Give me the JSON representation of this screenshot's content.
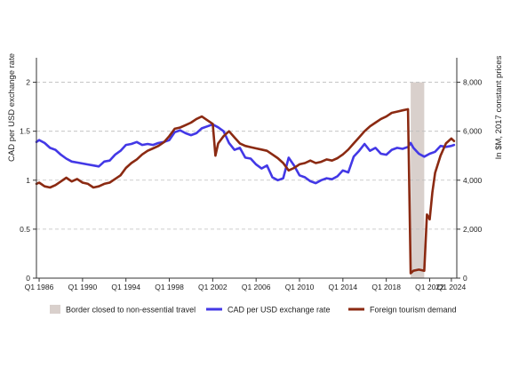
{
  "chart_data": {
    "type": "line",
    "title": "",
    "x_axis": {
      "tick_labels": [
        "Q1 1986",
        "Q1 1990",
        "Q1 1994",
        "Q1 1998",
        "Q1 2002",
        "Q1 2006",
        "Q1 2010",
        "Q1 2014",
        "Q1 2018",
        "Q1 2022",
        "Q1 2024"
      ],
      "range": [
        "Q3 1985",
        "Q2 2024"
      ]
    },
    "y_left": {
      "label": "CAD per USD exchange rate",
      "range": [
        0,
        2.25
      ],
      "ticks": [
        "0",
        "0.5",
        "1",
        "1.5",
        "2"
      ]
    },
    "y_right": {
      "label": "In $M, 2017 constant prices",
      "range": [
        0,
        9000
      ],
      "ticks": [
        "0",
        "2,000",
        "4,000",
        "6,000",
        "8,000"
      ]
    },
    "gridlines": "horizontal dashed",
    "shaded_region": {
      "label": "Border closed to non-essential travel",
      "start": "Q2 2020",
      "end": "Q3 2021",
      "color": "#d9d0cc"
    },
    "legend": {
      "position": "bottom",
      "entries": [
        "Border closed to non-essential travel",
        "CAD per USD exchange rate",
        "Foreign tourism demand"
      ]
    },
    "series": [
      {
        "name": "CAD per USD exchange rate",
        "axis": "left",
        "color": "#4338e6",
        "points": [
          [
            "1985.75",
            1.39
          ],
          [
            "1986.0",
            1.41
          ],
          [
            "1986.5",
            1.38
          ],
          [
            "1987.0",
            1.33
          ],
          [
            "1987.5",
            1.31
          ],
          [
            "1988.0",
            1.26
          ],
          [
            "1988.5",
            1.22
          ],
          [
            "1989.0",
            1.19
          ],
          [
            "1989.5",
            1.18
          ],
          [
            "1990.0",
            1.17
          ],
          [
            "1990.5",
            1.16
          ],
          [
            "1991.0",
            1.15
          ],
          [
            "1991.5",
            1.14
          ],
          [
            "1992.0",
            1.19
          ],
          [
            "1992.5",
            1.2
          ],
          [
            "1993.0",
            1.26
          ],
          [
            "1993.5",
            1.3
          ],
          [
            "1994.0",
            1.36
          ],
          [
            "1994.5",
            1.37
          ],
          [
            "1995.0",
            1.39
          ],
          [
            "1995.5",
            1.36
          ],
          [
            "1996.0",
            1.37
          ],
          [
            "1996.5",
            1.36
          ],
          [
            "1997.0",
            1.38
          ],
          [
            "1997.5",
            1.39
          ],
          [
            "1998.0",
            1.41
          ],
          [
            "1998.5",
            1.49
          ],
          [
            "1999.0",
            1.51
          ],
          [
            "1999.5",
            1.48
          ],
          [
            "2000.0",
            1.46
          ],
          [
            "2000.5",
            1.48
          ],
          [
            "2001.0",
            1.53
          ],
          [
            "2001.5",
            1.55
          ],
          [
            "2002.0",
            1.57
          ],
          [
            "2002.5",
            1.54
          ],
          [
            "2003.0",
            1.5
          ],
          [
            "2003.5",
            1.38
          ],
          [
            "2004.0",
            1.31
          ],
          [
            "2004.5",
            1.33
          ],
          [
            "2005.0",
            1.23
          ],
          [
            "2005.5",
            1.22
          ],
          [
            "2006.0",
            1.16
          ],
          [
            "2006.5",
            1.12
          ],
          [
            "2007.0",
            1.15
          ],
          [
            "2007.5",
            1.03
          ],
          [
            "2008.0",
            1.0
          ],
          [
            "2008.5",
            1.02
          ],
          [
            "2009.0",
            1.23
          ],
          [
            "2009.5",
            1.15
          ],
          [
            "2010.0",
            1.05
          ],
          [
            "2010.5",
            1.03
          ],
          [
            "2011.0",
            0.99
          ],
          [
            "2011.5",
            0.97
          ],
          [
            "2012.0",
            1.0
          ],
          [
            "2012.5",
            1.02
          ],
          [
            "2013.0",
            1.01
          ],
          [
            "2013.5",
            1.04
          ],
          [
            "2014.0",
            1.1
          ],
          [
            "2014.5",
            1.08
          ],
          [
            "2015.0",
            1.24
          ],
          [
            "2015.5",
            1.3
          ],
          [
            "2016.0",
            1.37
          ],
          [
            "2016.5",
            1.3
          ],
          [
            "2017.0",
            1.33
          ],
          [
            "2017.5",
            1.27
          ],
          [
            "2018.0",
            1.26
          ],
          [
            "2018.5",
            1.31
          ],
          [
            "2019.0",
            1.33
          ],
          [
            "2019.5",
            1.32
          ],
          [
            "2020.0",
            1.34
          ],
          [
            "2020.25",
            1.38
          ],
          [
            "2020.5",
            1.33
          ],
          [
            "2021.0",
            1.27
          ],
          [
            "2021.5",
            1.24
          ],
          [
            "2022.0",
            1.27
          ],
          [
            "2022.5",
            1.29
          ],
          [
            "2023.0",
            1.35
          ],
          [
            "2023.5",
            1.34
          ],
          [
            "2024.0",
            1.35
          ],
          [
            "2024.25",
            1.36
          ]
        ]
      },
      {
        "name": "Foreign tourism demand",
        "axis": "right",
        "color": "#8b2a12",
        "points": [
          [
            "1985.75",
            3850
          ],
          [
            "1986.0",
            3900
          ],
          [
            "1986.5",
            3750
          ],
          [
            "1987.0",
            3700
          ],
          [
            "1987.5",
            3800
          ],
          [
            "1988.0",
            3950
          ],
          [
            "1988.5",
            4100
          ],
          [
            "1989.0",
            3950
          ],
          [
            "1989.5",
            4050
          ],
          [
            "1990.0",
            3900
          ],
          [
            "1990.5",
            3850
          ],
          [
            "1991.0",
            3700
          ],
          [
            "1991.5",
            3750
          ],
          [
            "1992.0",
            3850
          ],
          [
            "1992.5",
            3900
          ],
          [
            "1993.0",
            4050
          ],
          [
            "1993.5",
            4200
          ],
          [
            "1994.0",
            4500
          ],
          [
            "1994.5",
            4700
          ],
          [
            "1995.0",
            4850
          ],
          [
            "1995.5",
            5050
          ],
          [
            "1996.0",
            5200
          ],
          [
            "1996.5",
            5300
          ],
          [
            "1997.0",
            5400
          ],
          [
            "1997.5",
            5550
          ],
          [
            "1998.0",
            5800
          ],
          [
            "1998.5",
            6100
          ],
          [
            "1999.0",
            6150
          ],
          [
            "1999.5",
            6250
          ],
          [
            "2000.0",
            6350
          ],
          [
            "2000.5",
            6500
          ],
          [
            "2001.0",
            6600
          ],
          [
            "2001.5",
            6450
          ],
          [
            "2002.0",
            6300
          ],
          [
            "2002.25",
            5000
          ],
          [
            "2002.5",
            5500
          ],
          [
            "2003.0",
            5800
          ],
          [
            "2003.5",
            6000
          ],
          [
            "2004.0",
            5750
          ],
          [
            "2004.5",
            5500
          ],
          [
            "2005.0",
            5400
          ],
          [
            "2005.5",
            5350
          ],
          [
            "2006.0",
            5300
          ],
          [
            "2006.5",
            5250
          ],
          [
            "2007.0",
            5200
          ],
          [
            "2007.5",
            5050
          ],
          [
            "2008.0",
            4900
          ],
          [
            "2008.5",
            4700
          ],
          [
            "2009.0",
            4400
          ],
          [
            "2009.5",
            4500
          ],
          [
            "2010.0",
            4650
          ],
          [
            "2010.5",
            4700
          ],
          [
            "2011.0",
            4800
          ],
          [
            "2011.5",
            4700
          ],
          [
            "2012.0",
            4750
          ],
          [
            "2012.5",
            4850
          ],
          [
            "2013.0",
            4800
          ],
          [
            "2013.5",
            4900
          ],
          [
            "2014.0",
            5050
          ],
          [
            "2014.5",
            5250
          ],
          [
            "2015.0",
            5500
          ],
          [
            "2015.5",
            5750
          ],
          [
            "2016.0",
            6000
          ],
          [
            "2016.5",
            6200
          ],
          [
            "2017.0",
            6350
          ],
          [
            "2017.5",
            6500
          ],
          [
            "2018.0",
            6600
          ],
          [
            "2018.5",
            6750
          ],
          [
            "2019.0",
            6800
          ],
          [
            "2019.5",
            6850
          ],
          [
            "2020.0",
            6900
          ],
          [
            "2020.25",
            200
          ],
          [
            "2020.5",
            300
          ],
          [
            "2021.0",
            350
          ],
          [
            "2021.5",
            300
          ],
          [
            "2021.75",
            2600
          ],
          [
            "2022.0",
            2400
          ],
          [
            "2022.25",
            3500
          ],
          [
            "2022.5",
            4300
          ],
          [
            "2023.0",
            5000
          ],
          [
            "2023.5",
            5500
          ],
          [
            "2024.0",
            5700
          ],
          [
            "2024.25",
            5600
          ]
        ]
      }
    ]
  }
}
